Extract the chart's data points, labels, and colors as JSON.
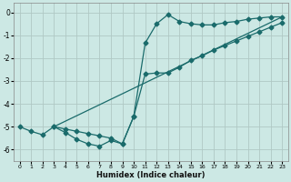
{
  "xlabel": "Humidex (Indice chaleur)",
  "bg_color": "#cce8e4",
  "grid_color": "#b0c8c4",
  "line_color": "#1a6b6b",
  "xlim": [
    -0.5,
    23.5
  ],
  "ylim": [
    -6.5,
    0.4
  ],
  "xticks": [
    0,
    1,
    2,
    3,
    4,
    5,
    6,
    7,
    8,
    9,
    10,
    11,
    12,
    13,
    14,
    15,
    16,
    17,
    18,
    19,
    20,
    21,
    22,
    23
  ],
  "yticks": [
    0,
    -1,
    -2,
    -3,
    -4,
    -5,
    -6
  ],
  "line1_x": [
    0,
    1,
    2,
    3,
    4,
    5,
    6,
    7,
    8,
    9,
    10,
    11,
    12,
    13,
    14,
    15,
    16,
    17,
    18,
    19,
    20,
    21,
    22,
    23
  ],
  "line1_y": [
    -5.0,
    -5.2,
    -5.35,
    -5.0,
    -5.25,
    -5.55,
    -5.75,
    -5.85,
    -5.6,
    -5.75,
    -4.55,
    -1.35,
    -0.5,
    -0.1,
    -0.4,
    -0.5,
    -0.55,
    -0.55,
    -0.45,
    -0.4,
    -0.3,
    -0.25,
    -0.2,
    -0.2
  ],
  "line2_x": [
    3,
    4,
    5,
    6,
    7,
    8,
    9,
    10,
    11,
    12,
    13,
    14,
    15,
    16,
    17,
    18,
    19,
    20,
    21,
    22,
    23
  ],
  "line2_y": [
    -5.0,
    -5.1,
    -5.2,
    -5.3,
    -5.4,
    -5.5,
    -5.75,
    -4.55,
    -2.7,
    -2.65,
    -2.65,
    -2.4,
    -2.1,
    -1.9,
    -1.65,
    -1.45,
    -1.25,
    -1.05,
    -0.85,
    -0.65,
    -0.45
  ],
  "line3_x": [
    3,
    23
  ],
  "line3_y": [
    -5.0,
    -0.2
  ]
}
